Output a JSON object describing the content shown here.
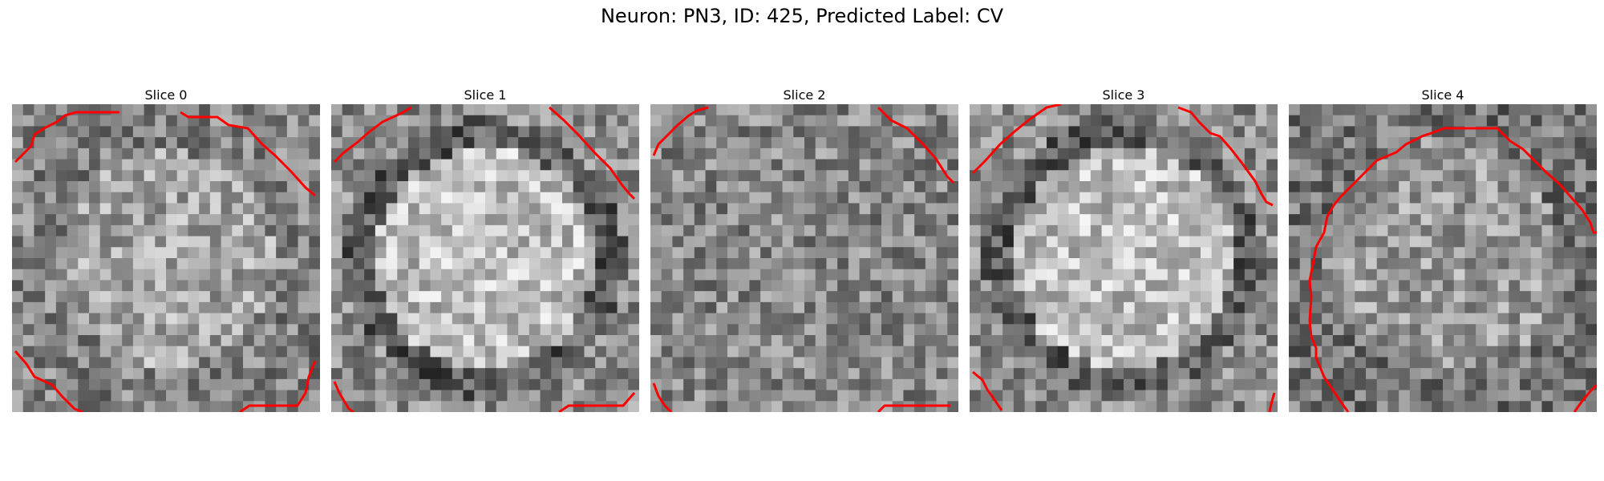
{
  "figure": {
    "title": "Neuron: PN3, ID: 425, Predicted Label: CV"
  },
  "colors": {
    "contour": "#ff0000"
  },
  "slices": [
    {
      "label": "Slice 0",
      "pattern": "noisy-low-contrast",
      "contour_icon": "red-contour-corners"
    },
    {
      "label": "Slice 1",
      "pattern": "bright-cell-body-dark-rim",
      "contour_icon": "red-contour-corners"
    },
    {
      "label": "Slice 2",
      "pattern": "noisy-mixed",
      "contour_icon": "red-contour-corners"
    },
    {
      "label": "Slice 3",
      "pattern": "bright-cell-body-dark-rim",
      "contour_icon": "red-contour-corners"
    },
    {
      "label": "Slice 4",
      "pattern": "noisy-with-outline",
      "contour_icon": "red-contour-outline"
    }
  ]
}
